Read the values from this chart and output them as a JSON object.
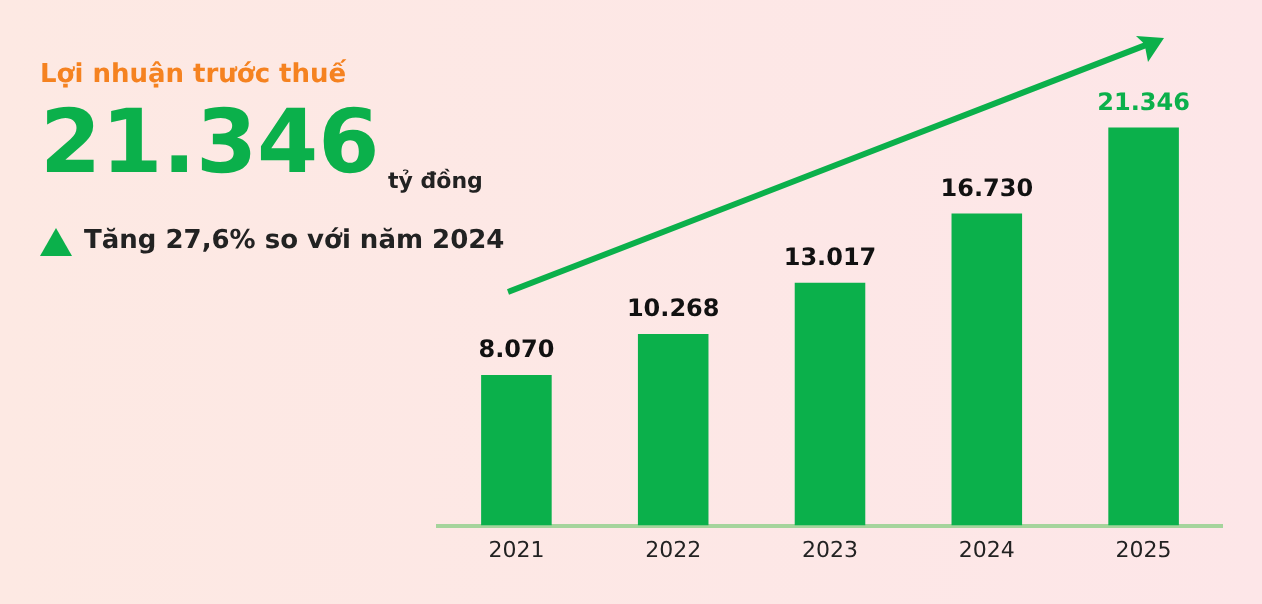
{
  "chart_data": {
    "type": "bar",
    "title": "Lợi nhuận trước thuế",
    "annotations": [
      "21.346",
      "tỷ đồng",
      "Tăng 27,6% so với năm 2024"
    ],
    "categories": [
      "2021",
      "2022",
      "2023",
      "2024",
      "2025"
    ],
    "values": [
      8070,
      10268,
      13017,
      16730,
      21346
    ],
    "value_labels": [
      "8.070",
      "10.268",
      "13.017",
      "16.730",
      "21.346"
    ],
    "color": "#0bb04b",
    "grid": false,
    "legend": false
  }
}
